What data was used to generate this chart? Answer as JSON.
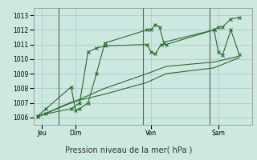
{
  "background_color": "#cce8e0",
  "grid_color": "#aacccc",
  "line_color": "#2d6a2d",
  "xlabel": "Pression niveau de la mer( hPa )",
  "ylim": [
    1005.5,
    1013.5
  ],
  "yticks": [
    1006,
    1007,
    1008,
    1009,
    1010,
    1011,
    1012,
    1013
  ],
  "xlim": [
    0,
    26
  ],
  "day_positions": [
    1,
    5,
    14,
    22
  ],
  "day_labels": [
    "Jeu",
    "Dim",
    "Ven",
    "Sam"
  ],
  "vline_positions": [
    3,
    13,
    21
  ],
  "series1_x": [
    0.5,
    1.5,
    4.5,
    5.0,
    5.5,
    6.5,
    7.5,
    8.5,
    13.5,
    14.0,
    14.5,
    15.0,
    15.5,
    21.5,
    22.0,
    22.5,
    23.5,
    24.5
  ],
  "series1_y": [
    1006.1,
    1006.6,
    1008.1,
    1006.5,
    1006.6,
    1007.0,
    1009.0,
    1011.1,
    1012.0,
    1012.0,
    1012.35,
    1012.2,
    1011.15,
    1012.0,
    1012.2,
    1012.2,
    1012.75,
    1012.85
  ],
  "series2_x": [
    0.5,
    1.5,
    4.5,
    5.5,
    6.5,
    7.5,
    8.5,
    13.5,
    14.0,
    14.5,
    15.2,
    15.8,
    21.5,
    22.0,
    22.5,
    23.5,
    24.5
  ],
  "series2_y": [
    1006.05,
    1006.25,
    1006.6,
    1007.0,
    1010.5,
    1010.75,
    1010.9,
    1011.0,
    1010.5,
    1010.35,
    1011.0,
    1011.0,
    1012.0,
    1010.5,
    1010.25,
    1012.0,
    1010.3
  ],
  "series3_x": [
    0.5,
    4.5,
    8.5,
    13.5,
    15.8,
    21.5,
    24.5
  ],
  "series3_y": [
    1006.05,
    1007.0,
    1008.0,
    1009.0,
    1009.5,
    1009.8,
    1010.2
  ],
  "series4_x": [
    0.5,
    4.5,
    8.5,
    13.5,
    15.8,
    21.5,
    24.5
  ],
  "series4_y": [
    1006.05,
    1007.05,
    1007.6,
    1008.4,
    1009.0,
    1009.4,
    1010.1
  ]
}
